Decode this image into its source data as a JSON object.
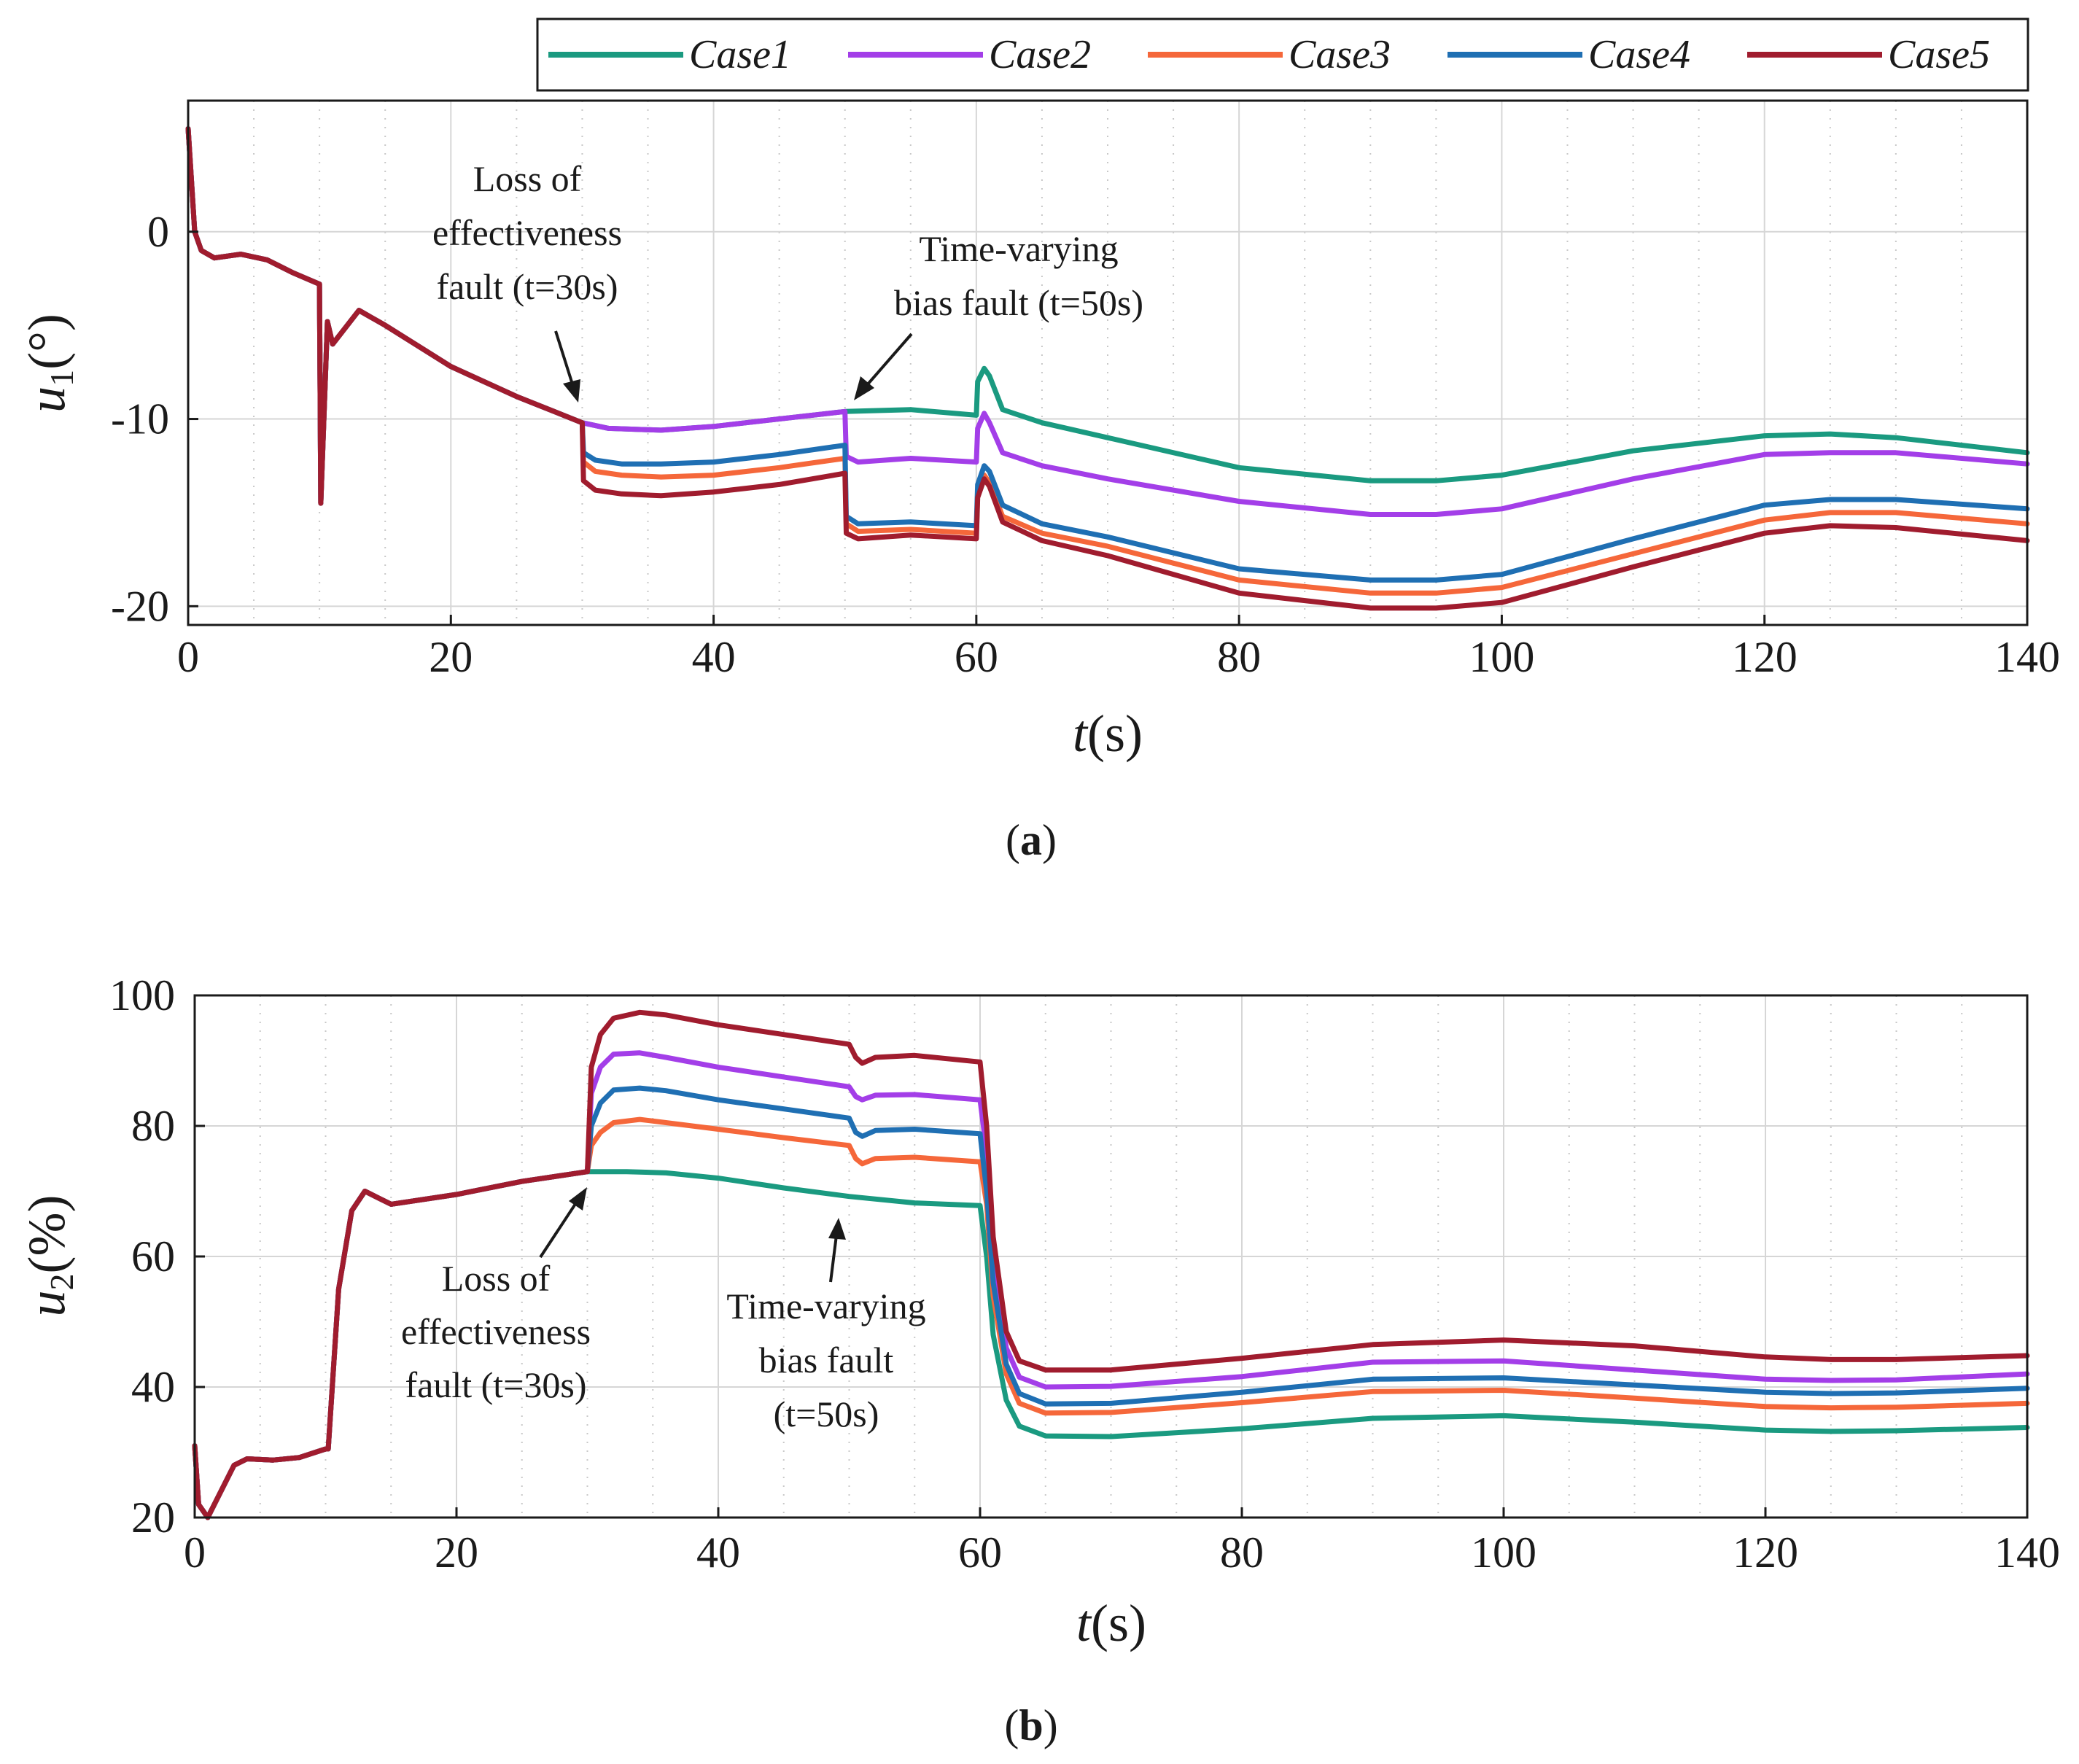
{
  "colors": {
    "Case1": "#1a9a80",
    "Case2": "#a33ee8",
    "Case3": "#f5673a",
    "Case4": "#1f6fb3",
    "Case5": "#a01c2e"
  },
  "legend": {
    "entries": [
      "Case1",
      "Case2",
      "Case3",
      "Case4",
      "Case5"
    ]
  },
  "panel_a": {
    "label": "(a)",
    "label_bold": "a",
    "ylabel_var": "u",
    "ylabel_sub": "1",
    "ylabel_unit": "(°)",
    "xlabel_var": "t",
    "xlabel_unit": "(s)",
    "annotation1": {
      "line1": "Loss of",
      "line2": "effectiveness",
      "line3": "fault (t=30s)"
    },
    "annotation2": {
      "line1": "Time-varying",
      "line2": "bias fault (t=50s)"
    }
  },
  "panel_b": {
    "label": "(b)",
    "label_bold": "b",
    "ylabel_var": "u",
    "ylabel_sub": "2",
    "ylabel_unit": "(%)",
    "xlabel_var": "t",
    "xlabel_unit": "(s)",
    "annotation1": {
      "line1": "Loss of",
      "line2": "effectiveness",
      "line3": "fault (t=30s)"
    },
    "annotation2": {
      "line1": "Time-varying",
      "line2": "bias fault",
      "line3": "(t=50s)"
    }
  },
  "chart_data": [
    {
      "type": "line",
      "title": "",
      "panel": "a",
      "xlabel": "t(s)",
      "ylabel": "u1(°)",
      "xlim": [
        0,
        140
      ],
      "ylim": [
        -21,
        7
      ],
      "xticks": [
        0,
        20,
        40,
        60,
        80,
        100,
        120,
        140
      ],
      "yticks": [
        0,
        -10,
        -20
      ],
      "ytick_labels": [
        "0",
        "-10",
        "-20"
      ],
      "grid": true,
      "series": [
        {
          "name": "Case1",
          "x": [
            0,
            0.5,
            1,
            2,
            4,
            6,
            8,
            10,
            10.1,
            10.6,
            11,
            13,
            15,
            20,
            25,
            30,
            32,
            36,
            40,
            45,
            50,
            55,
            60,
            60.1,
            60.6,
            61,
            62,
            65,
            70,
            80,
            90,
            95,
            100,
            110,
            120,
            125,
            130,
            140
          ],
          "y": [
            5.5,
            0,
            -1,
            -1.4,
            -1.2,
            -1.5,
            -2.2,
            -2.8,
            -14.5,
            -4.8,
            -6,
            -4.2,
            -5,
            -7.2,
            -8.8,
            -10.2,
            -10.5,
            -10.6,
            -10.4,
            -10,
            -9.6,
            -9.5,
            -9.8,
            -8,
            -7.3,
            -7.7,
            -9.5,
            -10.2,
            -11,
            -12.6,
            -13.3,
            -13.3,
            -13,
            -11.7,
            -10.9,
            -10.8,
            -11,
            -11.8
          ]
        },
        {
          "name": "Case2",
          "x": [
            0,
            0.5,
            1,
            2,
            4,
            6,
            8,
            10,
            10.1,
            10.6,
            11,
            13,
            15,
            20,
            25,
            30,
            32,
            36,
            40,
            45,
            50,
            50.1,
            51,
            55,
            60,
            60.1,
            60.6,
            61,
            62,
            65,
            70,
            80,
            90,
            95,
            100,
            110,
            120,
            125,
            130,
            140
          ],
          "y": [
            5.5,
            0,
            -1,
            -1.4,
            -1.2,
            -1.5,
            -2.2,
            -2.8,
            -14.5,
            -4.8,
            -6,
            -4.2,
            -5,
            -7.2,
            -8.8,
            -10.2,
            -10.5,
            -10.6,
            -10.4,
            -10,
            -9.6,
            -12,
            -12.3,
            -12.1,
            -12.3,
            -10.5,
            -9.7,
            -10.2,
            -11.8,
            -12.5,
            -13.2,
            -14.4,
            -15.1,
            -15.1,
            -14.8,
            -13.2,
            -11.9,
            -11.8,
            -11.8,
            -12.4
          ]
        },
        {
          "name": "Case3",
          "x": [
            0,
            0.5,
            1,
            2,
            4,
            6,
            8,
            10,
            10.1,
            10.6,
            11,
            13,
            15,
            20,
            25,
            30,
            30.1,
            31,
            33,
            36,
            40,
            45,
            50,
            50.1,
            51,
            55,
            60,
            60.1,
            60.6,
            61,
            62,
            65,
            70,
            80,
            90,
            95,
            100,
            110,
            120,
            125,
            130,
            140
          ],
          "y": [
            5.5,
            0,
            -1,
            -1.4,
            -1.2,
            -1.5,
            -2.2,
            -2.8,
            -14.5,
            -4.8,
            -6,
            -4.2,
            -5,
            -7.2,
            -8.8,
            -10.2,
            -12.3,
            -12.8,
            -13,
            -13.1,
            -13,
            -12.6,
            -12.1,
            -15.6,
            -16,
            -15.9,
            -16.1,
            -14,
            -13,
            -13.4,
            -15.2,
            -16.1,
            -16.8,
            -18.6,
            -19.3,
            -19.3,
            -19,
            -17.2,
            -15.4,
            -15,
            -15,
            -15.6
          ]
        },
        {
          "name": "Case4",
          "x": [
            0,
            0.5,
            1,
            2,
            4,
            6,
            8,
            10,
            10.1,
            10.6,
            11,
            13,
            15,
            20,
            25,
            30,
            30.1,
            31,
            33,
            36,
            40,
            45,
            50,
            50.1,
            51,
            55,
            60,
            60.1,
            60.6,
            61,
            62,
            65,
            70,
            80,
            90,
            95,
            100,
            110,
            120,
            125,
            130,
            140
          ],
          "y": [
            5.5,
            0,
            -1,
            -1.4,
            -1.2,
            -1.5,
            -2.2,
            -2.8,
            -14.5,
            -4.8,
            -6,
            -4.2,
            -5,
            -7.2,
            -8.8,
            -10.2,
            -11.8,
            -12.2,
            -12.4,
            -12.4,
            -12.3,
            -11.9,
            -11.4,
            -15.2,
            -15.6,
            -15.5,
            -15.7,
            -13.5,
            -12.5,
            -12.8,
            -14.6,
            -15.6,
            -16.3,
            -18,
            -18.6,
            -18.6,
            -18.3,
            -16.4,
            -14.6,
            -14.3,
            -14.3,
            -14.8
          ]
        },
        {
          "name": "Case5",
          "x": [
            0,
            0.5,
            1,
            2,
            4,
            6,
            8,
            10,
            10.1,
            10.6,
            11,
            13,
            15,
            20,
            25,
            30,
            30.1,
            31,
            33,
            36,
            40,
            45,
            50,
            50.1,
            51,
            55,
            60,
            60.1,
            60.6,
            61,
            62,
            65,
            70,
            80,
            90,
            95,
            100,
            110,
            120,
            125,
            130,
            140
          ],
          "y": [
            5.5,
            0,
            -1,
            -1.4,
            -1.2,
            -1.5,
            -2.2,
            -2.8,
            -14.5,
            -4.8,
            -6,
            -4.2,
            -5,
            -7.2,
            -8.8,
            -10.2,
            -13.3,
            -13.8,
            -14,
            -14.1,
            -13.9,
            -13.5,
            -12.9,
            -16.1,
            -16.4,
            -16.2,
            -16.4,
            -14.2,
            -13.2,
            -13.6,
            -15.5,
            -16.5,
            -17.3,
            -19.3,
            -20.1,
            -20.1,
            -19.8,
            -17.9,
            -16.1,
            -15.7,
            -15.8,
            -16.5
          ]
        }
      ]
    },
    {
      "type": "line",
      "title": "",
      "panel": "b",
      "xlabel": "t(s)",
      "ylabel": "u2(%)",
      "xlim": [
        0,
        140
      ],
      "ylim": [
        20,
        100
      ],
      "xticks": [
        0,
        20,
        40,
        60,
        80,
        100,
        120,
        140
      ],
      "yticks": [
        20,
        40,
        60,
        80,
        100
      ],
      "ytick_labels": [
        "20",
        "40",
        "60",
        "80",
        "100"
      ],
      "grid": true,
      "series": [
        {
          "name": "Case1",
          "x": [
            0,
            0.3,
            1,
            2,
            3,
            4,
            6,
            8,
            10,
            10.2,
            11,
            12,
            13,
            14,
            15,
            20,
            25,
            30,
            33,
            36,
            40,
            45,
            50,
            55,
            60,
            60.5,
            61,
            62,
            63,
            65,
            70,
            80,
            90,
            100,
            110,
            120,
            125,
            130,
            140
          ],
          "y": [
            31,
            22,
            20,
            24,
            28,
            29,
            28.8,
            29.2,
            30.5,
            30.5,
            55,
            67,
            70,
            69,
            68,
            69.5,
            71.5,
            73,
            73,
            72.8,
            72,
            70.5,
            69.2,
            68.2,
            67.8,
            60,
            48,
            38,
            34,
            32.5,
            32.4,
            33.6,
            35.2,
            35.6,
            34.6,
            33.4,
            33.2,
            33.3,
            33.8
          ]
        },
        {
          "name": "Case2",
          "x": [
            0,
            0.3,
            1,
            2,
            3,
            4,
            6,
            8,
            10,
            10.2,
            11,
            12,
            13,
            14,
            15,
            20,
            25,
            30,
            30.3,
            31,
            32,
            34,
            36,
            40,
            45,
            50,
            50.5,
            51,
            52,
            55,
            60,
            60.5,
            61,
            62,
            63,
            65,
            70,
            80,
            90,
            100,
            110,
            120,
            125,
            130,
            140
          ],
          "y": [
            31,
            22,
            20,
            24,
            28,
            29,
            28.8,
            29.2,
            30.5,
            30.5,
            55,
            67,
            70,
            69,
            68,
            69.5,
            71.5,
            73,
            85,
            89,
            91,
            91.2,
            90.5,
            89,
            87.5,
            86,
            84.5,
            84,
            84.7,
            84.8,
            84,
            76,
            60,
            46,
            41.5,
            40,
            40.1,
            41.6,
            43.8,
            44,
            42.6,
            41.2,
            41,
            41.1,
            42
          ]
        },
        {
          "name": "Case3",
          "x": [
            0,
            0.3,
            1,
            2,
            3,
            4,
            6,
            8,
            10,
            10.2,
            11,
            12,
            13,
            14,
            15,
            20,
            25,
            30,
            30.3,
            31,
            32,
            34,
            36,
            40,
            45,
            50,
            50.5,
            51,
            52,
            55,
            60,
            60.5,
            61,
            62,
            63,
            65,
            70,
            80,
            90,
            100,
            110,
            120,
            125,
            130,
            140
          ],
          "y": [
            31,
            22,
            20,
            24,
            28,
            29,
            28.8,
            29.2,
            30.5,
            30.5,
            55,
            67,
            70,
            69,
            68,
            69.5,
            71.5,
            73,
            77,
            79,
            80.5,
            81,
            80.5,
            79.5,
            78.2,
            77,
            75,
            74.2,
            75,
            75.2,
            74.5,
            68,
            54,
            42,
            37.5,
            36,
            36.1,
            37.6,
            39.3,
            39.5,
            38.3,
            37,
            36.8,
            36.9,
            37.5
          ]
        },
        {
          "name": "Case4",
          "x": [
            0,
            0.3,
            1,
            2,
            3,
            4,
            6,
            8,
            10,
            10.2,
            11,
            12,
            13,
            14,
            15,
            20,
            25,
            30,
            30.3,
            31,
            32,
            34,
            36,
            40,
            45,
            50,
            50.5,
            51,
            52,
            55,
            60,
            60.5,
            61,
            62,
            63,
            65,
            70,
            80,
            90,
            100,
            110,
            120,
            125,
            130,
            140
          ],
          "y": [
            31,
            22,
            20,
            24,
            28,
            29,
            28.8,
            29.2,
            30.5,
            30.5,
            55,
            67,
            70,
            69,
            68,
            69.5,
            71.5,
            73,
            80,
            83.5,
            85.5,
            85.8,
            85.4,
            84,
            82.6,
            81.2,
            79,
            78.4,
            79.3,
            79.5,
            78.8,
            70,
            56,
            43.5,
            39,
            37.4,
            37.5,
            39.2,
            41.2,
            41.4,
            40.3,
            39.2,
            39,
            39.1,
            39.8
          ]
        },
        {
          "name": "Case5",
          "x": [
            0,
            0.3,
            1,
            2,
            3,
            4,
            6,
            8,
            10,
            10.2,
            11,
            12,
            13,
            14,
            15,
            20,
            25,
            30,
            30.3,
            31,
            32,
            34,
            36,
            40,
            45,
            50,
            50.5,
            51,
            52,
            55,
            60,
            60.5,
            61,
            62,
            63,
            65,
            70,
            80,
            90,
            100,
            110,
            120,
            125,
            130,
            140
          ],
          "y": [
            31,
            22,
            20,
            24,
            28,
            29,
            28.8,
            29.2,
            30.5,
            30.5,
            55,
            67,
            70,
            69,
            68,
            69.5,
            71.5,
            73,
            89,
            94,
            96.5,
            97.4,
            97,
            95.5,
            94,
            92.5,
            90.5,
            89.6,
            90.5,
            90.8,
            89.8,
            80,
            63,
            48.5,
            44,
            42.6,
            42.6,
            44.4,
            46.5,
            47.2,
            46.3,
            44.6,
            44.2,
            44.2,
            44.8
          ]
        }
      ]
    }
  ]
}
